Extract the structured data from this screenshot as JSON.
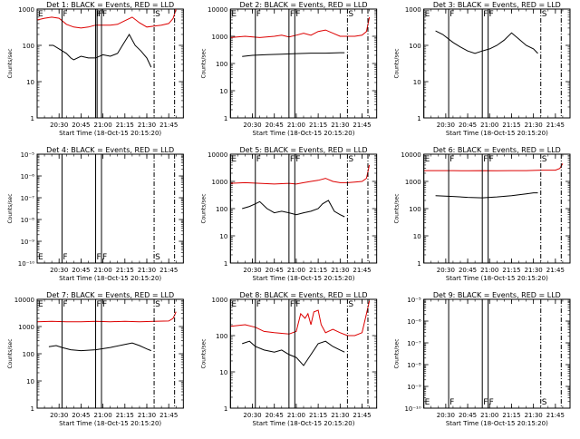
{
  "chart_data": [
    {
      "type": "line",
      "title": "Det 1: BLACK = Events, RED = LLD",
      "xlabel": "Start Time (18-Oct-15 20:15:20)",
      "ylabel": "Counts/sec",
      "log_y": true,
      "ylim": [
        1,
        1000
      ],
      "yticks": [
        "1",
        "10",
        "100",
        "1000"
      ],
      "xlim": [
        "20:15",
        "21:55"
      ],
      "xticks": [
        "20:30",
        "20:45",
        "21:00",
        "21:15",
        "21:30",
        "21:45"
      ],
      "markers": [
        {
          "label": "E",
          "time": "20:15",
          "style": "solid"
        },
        {
          "label": "F",
          "time": "20:32",
          "style": "solid"
        },
        {
          "label": "F",
          "time": "20:55",
          "style": "solid"
        },
        {
          "label": "F",
          "time": "20:56",
          "style": "solid"
        },
        {
          "label": "F",
          "time": "20:59",
          "style": "solid"
        },
        {
          "label": "S",
          "time": "21:35",
          "style": "dashdot"
        },
        {
          "label": "",
          "time": "21:49",
          "style": "dashdot"
        }
      ],
      "series": [
        {
          "color": "#dd0000",
          "x": [
            "20:15",
            "20:20",
            "20:25",
            "20:30",
            "20:35",
            "20:40",
            "20:45",
            "20:50",
            "20:55",
            "21:00",
            "21:05",
            "21:10",
            "21:15",
            "21:20",
            "21:25",
            "21:30",
            "21:35",
            "21:40",
            "21:45",
            "21:48",
            "21:50"
          ],
          "y": [
            500,
            560,
            600,
            560,
            380,
            320,
            300,
            320,
            360,
            360,
            360,
            380,
            480,
            600,
            420,
            320,
            340,
            360,
            400,
            550,
            1000
          ]
        },
        {
          "color": "#000000",
          "x": [
            "20:23",
            "20:26",
            "20:30",
            "20:35",
            "20:38",
            "20:40",
            "20:45",
            "20:50",
            "20:55",
            "21:00",
            "21:05",
            "21:10",
            "21:14",
            "21:18",
            "21:22",
            "21:26",
            "21:30",
            "21:33"
          ],
          "y": [
            100,
            100,
            80,
            60,
            45,
            40,
            50,
            45,
            45,
            55,
            50,
            60,
            110,
            200,
            100,
            70,
            45,
            25
          ]
        }
      ]
    },
    {
      "type": "line",
      "title": "Det 2: BLACK = Events, RED = LLD",
      "xlabel": "Start Time (18-Oct-15 20:15:20)",
      "ylabel": "Counts/sec",
      "log_y": true,
      "ylim": [
        1,
        10000
      ],
      "yticks": [
        "1",
        "10",
        "100",
        "1000",
        "10000"
      ],
      "xlim": [
        "20:15",
        "21:55"
      ],
      "xticks": [
        "20:30",
        "20:45",
        "21:00",
        "21:15",
        "21:30",
        "21:45"
      ],
      "markers": [
        {
          "label": "E",
          "time": "20:15",
          "style": "solid"
        },
        {
          "label": "F",
          "time": "20:32",
          "style": "solid"
        },
        {
          "label": "F",
          "time": "20:55",
          "style": "solid"
        },
        {
          "label": "F",
          "time": "20:59",
          "style": "solid"
        },
        {
          "label": "S",
          "time": "21:35",
          "style": "dashdot"
        },
        {
          "label": "",
          "time": "21:49",
          "style": "dashdot"
        }
      ],
      "series": [
        {
          "color": "#dd0000",
          "x": [
            "20:15",
            "20:25",
            "20:35",
            "20:45",
            "20:50",
            "20:55",
            "21:00",
            "21:05",
            "21:10",
            "21:15",
            "21:20",
            "21:25",
            "21:30",
            "21:35",
            "21:40",
            "21:45",
            "21:48",
            "21:50"
          ],
          "y": [
            900,
            1000,
            900,
            1000,
            1100,
            950,
            1100,
            1300,
            1100,
            1500,
            1700,
            1300,
            1000,
            1000,
            1000,
            1100,
            1500,
            5000
          ]
        },
        {
          "color": "#000000",
          "x": [
            "20:23",
            "20:30",
            "20:40",
            "20:50",
            "21:00",
            "21:10",
            "21:20",
            "21:30",
            "21:33"
          ],
          "y": [
            180,
            200,
            210,
            220,
            230,
            240,
            240,
            250,
            250
          ]
        }
      ]
    },
    {
      "type": "line",
      "title": "Det 3: BLACK = Events, RED = LLD",
      "xlabel": "Start Time (18-Oct-15 20:15:20)",
      "ylabel": "Counts/sec",
      "log_y": true,
      "ylim": [
        1,
        1000
      ],
      "yticks": [
        "1",
        "10",
        "100",
        "1000"
      ],
      "xlim": [
        "20:15",
        "21:55"
      ],
      "xticks": [
        "20:30",
        "20:45",
        "21:00",
        "21:15",
        "21:30",
        "21:45"
      ],
      "markers": [
        {
          "label": "E",
          "time": "20:15",
          "style": "solid"
        },
        {
          "label": "F",
          "time": "20:32",
          "style": "solid"
        },
        {
          "label": "F",
          "time": "20:55",
          "style": "solid"
        },
        {
          "label": "F",
          "time": "20:59",
          "style": "solid"
        },
        {
          "label": "S",
          "time": "21:35",
          "style": "dashdot"
        },
        {
          "label": "",
          "time": "21:49",
          "style": "dashdot"
        }
      ],
      "series": [
        {
          "color": "#000000",
          "x": [
            "20:23",
            "20:28",
            "20:35",
            "20:40",
            "20:45",
            "20:50",
            "20:55",
            "21:00",
            "21:05",
            "21:10",
            "21:15",
            "21:20",
            "21:25",
            "21:30",
            "21:33"
          ],
          "y": [
            250,
            200,
            120,
            90,
            70,
            60,
            70,
            80,
            100,
            140,
            220,
            150,
            100,
            80,
            60
          ]
        }
      ]
    },
    {
      "type": "line",
      "title": "Det 4: BLACK = Events, RED = LLD",
      "xlabel": "Start Time (18-Oct-15 20:15:20)",
      "ylabel": "Counts/sec",
      "log_y": true,
      "ylim": [
        1e-10,
        1e-05
      ],
      "yticks": [
        "10⁻¹⁰",
        "10⁻⁹",
        "10⁻⁸",
        "10⁻⁷",
        "10⁻⁶",
        "10⁻⁵"
      ],
      "xlim": [
        "20:15",
        "21:55"
      ],
      "xticks": [
        "20:30",
        "20:45",
        "21:00",
        "21:15",
        "21:30",
        "21:45"
      ],
      "markers": [
        {
          "label": "E",
          "time": "20:15",
          "style": "solid"
        },
        {
          "label": "F",
          "time": "20:32",
          "style": "solid"
        },
        {
          "label": "F",
          "time": "20:55",
          "style": "solid"
        },
        {
          "label": "F",
          "time": "20:59",
          "style": "solid"
        },
        {
          "label": "S",
          "time": "21:35",
          "style": "dashdot"
        },
        {
          "label": "",
          "time": "21:49",
          "style": "dashdot"
        }
      ],
      "series": []
    },
    {
      "type": "line",
      "title": "Det 5: BLACK = Events, RED = LLD",
      "xlabel": "Start Time (18-Oct-15 20:15:20)",
      "ylabel": "Counts/sec",
      "log_y": true,
      "ylim": [
        1,
        10000
      ],
      "yticks": [
        "1",
        "10",
        "100",
        "1000",
        "10000"
      ],
      "xlim": [
        "20:15",
        "21:55"
      ],
      "xticks": [
        "20:30",
        "20:45",
        "21:00",
        "21:15",
        "21:30",
        "21:45"
      ],
      "markers": [
        {
          "label": "E",
          "time": "20:15",
          "style": "solid"
        },
        {
          "label": "F",
          "time": "20:32",
          "style": "solid"
        },
        {
          "label": "F",
          "time": "20:55",
          "style": "solid"
        },
        {
          "label": "F",
          "time": "20:59",
          "style": "solid"
        },
        {
          "label": "S",
          "time": "21:35",
          "style": "dashdot"
        },
        {
          "label": "",
          "time": "21:49",
          "style": "dashdot"
        }
      ],
      "series": [
        {
          "color": "#dd0000",
          "x": [
            "20:15",
            "20:25",
            "20:35",
            "20:45",
            "20:55",
            "21:00",
            "21:05",
            "21:10",
            "21:15",
            "21:20",
            "21:25",
            "21:30",
            "21:35",
            "21:40",
            "21:45",
            "21:48",
            "21:50"
          ],
          "y": [
            850,
            900,
            850,
            800,
            850,
            800,
            900,
            1000,
            1100,
            1300,
            1000,
            900,
            900,
            950,
            1000,
            1300,
            4000
          ]
        },
        {
          "color": "#000000",
          "x": [
            "20:23",
            "20:28",
            "20:32",
            "20:35",
            "20:40",
            "20:45",
            "20:50",
            "20:55",
            "21:00",
            "21:05",
            "21:10",
            "21:15",
            "21:18",
            "21:22",
            "21:26",
            "21:30",
            "21:33"
          ],
          "y": [
            100,
            120,
            150,
            180,
            100,
            70,
            80,
            70,
            60,
            70,
            80,
            100,
            150,
            200,
            80,
            60,
            50
          ]
        }
      ]
    },
    {
      "type": "line",
      "title": "Det 6: BLACK = Events, RED = LLD",
      "xlabel": "Start Time (18-Oct-15 20:15:20)",
      "ylabel": "Counts/sec",
      "log_y": true,
      "ylim": [
        1,
        10000
      ],
      "yticks": [
        "1",
        "10",
        "100",
        "1000",
        "10000"
      ],
      "xlim": [
        "20:15",
        "21:55"
      ],
      "xticks": [
        "20:30",
        "20:45",
        "21:00",
        "21:15",
        "21:30",
        "21:45"
      ],
      "markers": [
        {
          "label": "E",
          "time": "20:15",
          "style": "solid"
        },
        {
          "label": "F",
          "time": "20:32",
          "style": "solid"
        },
        {
          "label": "F",
          "time": "20:55",
          "style": "solid"
        },
        {
          "label": "F",
          "time": "20:59",
          "style": "solid"
        },
        {
          "label": "S",
          "time": "21:35",
          "style": "dashdot"
        },
        {
          "label": "",
          "time": "21:49",
          "style": "dashdot"
        }
      ],
      "series": [
        {
          "color": "#dd0000",
          "x": [
            "20:15",
            "20:25",
            "20:35",
            "20:45",
            "20:55",
            "21:05",
            "21:15",
            "21:25",
            "21:35",
            "21:45",
            "21:48",
            "21:50"
          ],
          "y": [
            2500,
            2500,
            2500,
            2450,
            2500,
            2450,
            2500,
            2500,
            2600,
            2600,
            3000,
            4500
          ]
        },
        {
          "color": "#000000",
          "x": [
            "20:23",
            "20:35",
            "20:45",
            "20:55",
            "21:05",
            "21:15",
            "21:25",
            "21:30",
            "21:33"
          ],
          "y": [
            300,
            280,
            260,
            250,
            270,
            300,
            350,
            380,
            380
          ]
        }
      ]
    },
    {
      "type": "line",
      "title": "Det 7: BLACK = Events, RED = LLD",
      "xlabel": "Start Time (18-Oct-15 20:15:20)",
      "ylabel": "Counts/sec",
      "log_y": true,
      "ylim": [
        1,
        10000
      ],
      "yticks": [
        "1",
        "10",
        "100",
        "1000",
        "10000"
      ],
      "xlim": [
        "20:15",
        "21:55"
      ],
      "xticks": [
        "20:30",
        "20:45",
        "21:00",
        "21:15",
        "21:30",
        "21:45"
      ],
      "markers": [
        {
          "label": "E",
          "time": "20:15",
          "style": "solid"
        },
        {
          "label": "F",
          "time": "20:32",
          "style": "solid"
        },
        {
          "label": "F",
          "time": "20:55",
          "style": "solid"
        },
        {
          "label": "F",
          "time": "20:59",
          "style": "solid"
        },
        {
          "label": "S",
          "time": "21:35",
          "style": "dashdot"
        },
        {
          "label": "",
          "time": "21:49",
          "style": "dashdot"
        }
      ],
      "series": [
        {
          "color": "#dd0000",
          "x": [
            "20:15",
            "20:25",
            "20:35",
            "20:45",
            "20:55",
            "21:05",
            "21:15",
            "21:25",
            "21:35",
            "21:45",
            "21:48",
            "21:50"
          ],
          "y": [
            1500,
            1550,
            1500,
            1500,
            1550,
            1500,
            1550,
            1500,
            1550,
            1600,
            2000,
            3500
          ]
        },
        {
          "color": "#000000",
          "x": [
            "20:23",
            "20:28",
            "20:32",
            "20:38",
            "20:45",
            "20:55",
            "21:05",
            "21:15",
            "21:20",
            "21:25",
            "21:30",
            "21:33"
          ],
          "y": [
            180,
            200,
            170,
            140,
            130,
            140,
            170,
            220,
            250,
            200,
            150,
            130
          ]
        }
      ]
    },
    {
      "type": "line",
      "title": "Det 8: BLACK = Events, RED = LLD",
      "xlabel": "Start Time (18-Oct-15 20:15:20)",
      "ylabel": "Counts/sec",
      "log_y": true,
      "ylim": [
        1,
        1000
      ],
      "yticks": [
        "1",
        "10",
        "100",
        "1000"
      ],
      "xlim": [
        "20:15",
        "21:55"
      ],
      "xticks": [
        "20:30",
        "20:45",
        "21:00",
        "21:15",
        "21:30",
        "21:45"
      ],
      "markers": [
        {
          "label": "E",
          "time": "20:15",
          "style": "solid"
        },
        {
          "label": "F",
          "time": "20:32",
          "style": "solid"
        },
        {
          "label": "F",
          "time": "20:55",
          "style": "solid"
        },
        {
          "label": "F",
          "time": "20:59",
          "style": "solid"
        },
        {
          "label": "S",
          "time": "21:35",
          "style": "dashdot"
        },
        {
          "label": "",
          "time": "21:49",
          "style": "dashdot"
        }
      ],
      "series": [
        {
          "color": "#dd0000",
          "x": [
            "20:15",
            "20:25",
            "20:32",
            "20:38",
            "20:45",
            "20:55",
            "21:00",
            "21:03",
            "21:06",
            "21:08",
            "21:10",
            "21:12",
            "21:15",
            "21:17",
            "21:20",
            "21:25",
            "21:30",
            "21:35",
            "21:40",
            "21:45",
            "21:48",
            "21:50"
          ],
          "y": [
            180,
            200,
            170,
            130,
            120,
            110,
            130,
            400,
            300,
            400,
            200,
            450,
            500,
            200,
            120,
            150,
            120,
            100,
            100,
            120,
            400,
            900
          ]
        },
        {
          "color": "#000000",
          "x": [
            "20:23",
            "20:28",
            "20:32",
            "20:38",
            "20:45",
            "20:50",
            "20:55",
            "21:00",
            "21:05",
            "21:15",
            "21:20",
            "21:25",
            "21:30",
            "21:33"
          ],
          "y": [
            60,
            70,
            50,
            40,
            35,
            40,
            30,
            25,
            15,
            60,
            70,
            50,
            40,
            35
          ]
        }
      ]
    },
    {
      "type": "line",
      "title": "Det 9: BLACK = Events, RED = LLD",
      "xlabel": "Start Time (18-Oct-15 20:15:20)",
      "ylabel": "Counts/sec",
      "log_y": true,
      "ylim": [
        1e-10,
        1e-05
      ],
      "yticks": [
        "10⁻¹⁰",
        "10⁻⁹",
        "10⁻⁸",
        "10⁻⁷",
        "10⁻⁶",
        "10⁻⁵"
      ],
      "xlim": [
        "20:15",
        "21:55"
      ],
      "xticks": [
        "20:30",
        "20:45",
        "21:00",
        "21:15",
        "21:30",
        "21:45"
      ],
      "markers": [
        {
          "label": "E",
          "time": "20:15",
          "style": "solid"
        },
        {
          "label": "F",
          "time": "20:32",
          "style": "solid"
        },
        {
          "label": "F",
          "time": "20:55",
          "style": "solid"
        },
        {
          "label": "F",
          "time": "20:59",
          "style": "solid"
        },
        {
          "label": "S",
          "time": "21:35",
          "style": "dashdot"
        },
        {
          "label": "",
          "time": "21:49",
          "style": "dashdot"
        }
      ],
      "series": []
    }
  ]
}
